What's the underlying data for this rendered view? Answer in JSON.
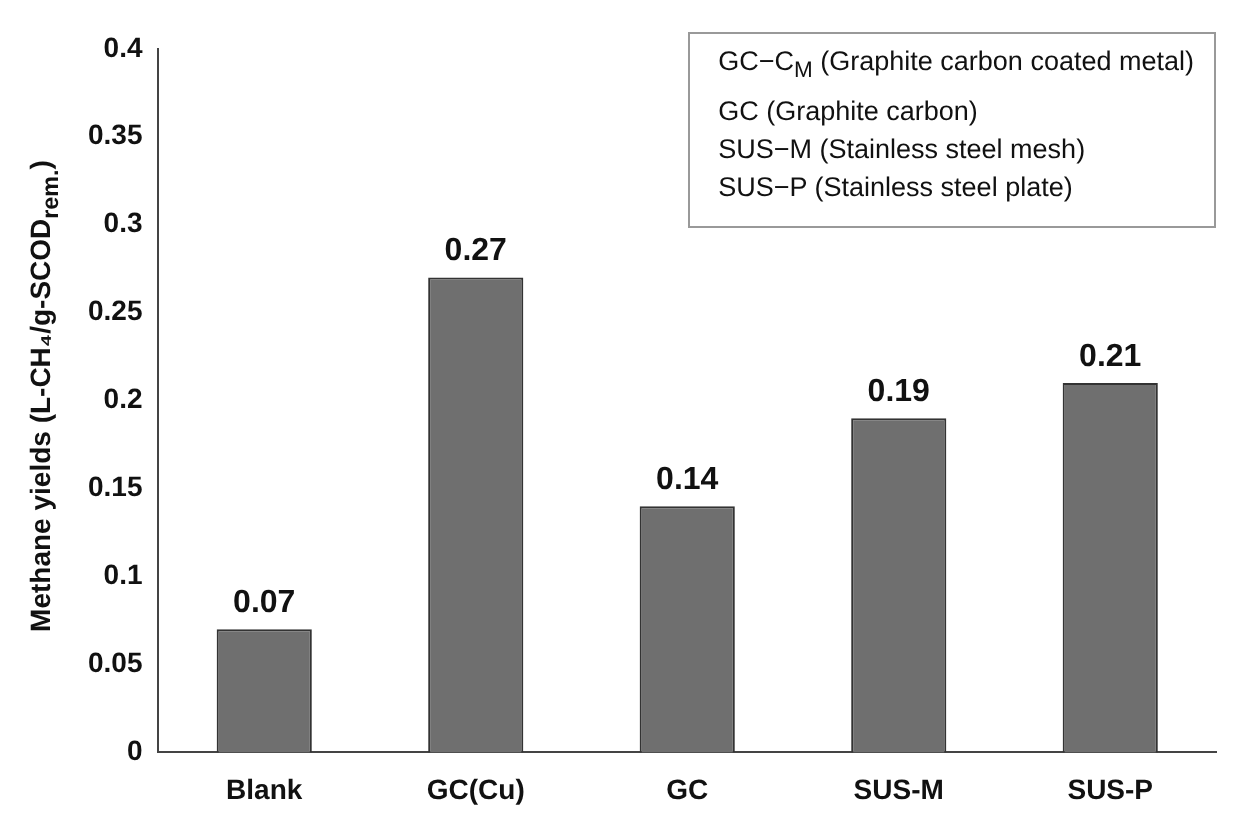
{
  "chart_data": {
    "type": "bar",
    "ylabel": "Methane yields (L-CH₄/g-SCOD$_{rem.}$)",
    "categories": [
      "Blank",
      "GC(Cu)",
      "GC",
      "SUS-M",
      "SUS-P"
    ],
    "values": [
      0.07,
      0.27,
      0.14,
      0.19,
      0.21
    ],
    "color": "#6f6f6f",
    "ylim": [
      0,
      0.4
    ],
    "yticks": [
      0,
      0.05,
      0.1,
      0.15,
      0.2,
      0.25,
      0.3,
      0.35,
      0.4
    ],
    "grid": false,
    "legend": false,
    "data_labels": true,
    "annotations": [
      "GC−C$_{M}$ (Graphite carbon coated metal)",
      "GC (Graphite carbon)",
      "SUS−M (Stainless steel mesh)",
      "SUS−P (Stainless steel plate)"
    ]
  }
}
